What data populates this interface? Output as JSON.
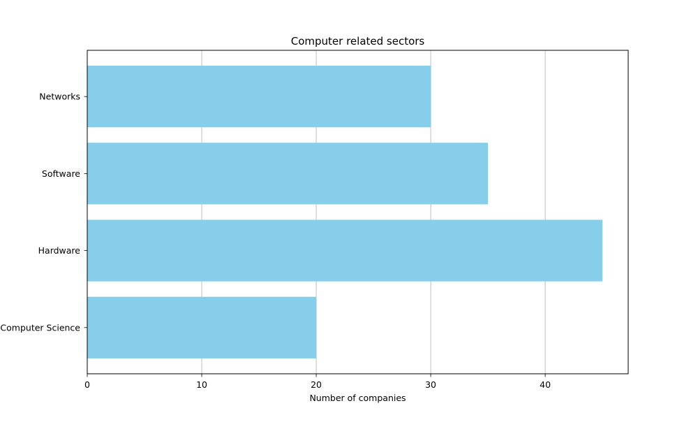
{
  "chart_data": {
    "type": "bar",
    "orientation": "horizontal",
    "title": "Computer related sectors",
    "xlabel": "Number of companies",
    "ylabel": "",
    "categories": [
      "Computer Science",
      "Hardware",
      "Software",
      "Networks"
    ],
    "values": [
      20,
      45,
      35,
      30
    ],
    "xlim": [
      0,
      47.25
    ],
    "xticks": [
      0,
      10,
      20,
      30,
      40
    ],
    "grid": "x-axis vertical lines",
    "legend": "none",
    "bar_color": "#87CEEB",
    "grid_color": "#b0b0b0"
  }
}
